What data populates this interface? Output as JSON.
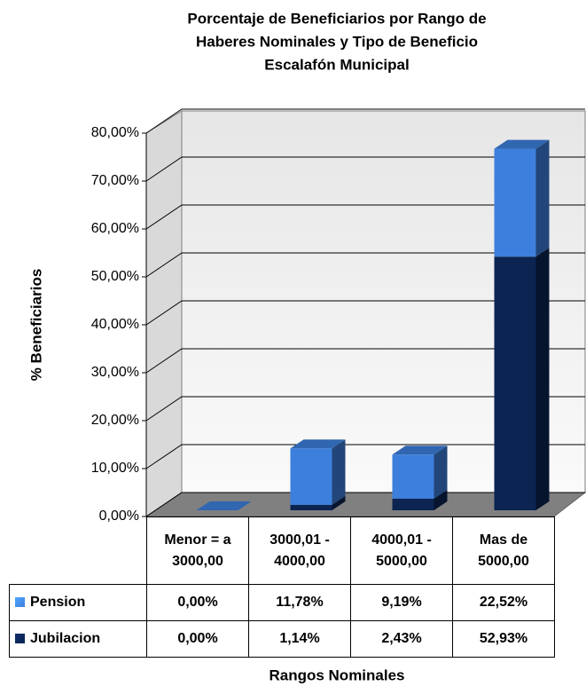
{
  "chart_data": {
    "type": "bar3d_stacked",
    "title": [
      "Porcentaje de Beneficiarios por Rango de",
      "Haberes Nominales y Tipo de Beneficio",
      "Escalafón Municipal"
    ],
    "y_label": "% Beneficiarios",
    "x_label": "Rangos Nominales",
    "categories": [
      "Menor = a 3000,00",
      "3000,01 - 4000,00",
      "4000,01 - 5000,00",
      "Mas de 5000,00"
    ],
    "series": [
      {
        "name": "Pension",
        "color": "#3d7fdc",
        "values": [
          0,
          11.78,
          9.19,
          22.52
        ],
        "value_labels": [
          "0,00%",
          "11,78%",
          "9,19%",
          "22,52%"
        ]
      },
      {
        "name": "Jubilacion",
        "color": "#0b2452",
        "values": [
          0,
          1.14,
          2.43,
          52.93
        ],
        "value_labels": [
          "0,00%",
          "1,14%",
          "2,43%",
          "52,93%"
        ]
      }
    ],
    "ylim": [
      0,
      80
    ],
    "yticks": [
      {
        "value": 0,
        "label": "0,00%"
      },
      {
        "value": 10,
        "label": "10,00%"
      },
      {
        "value": 20,
        "label": "20,00%"
      },
      {
        "value": 30,
        "label": "30,00%"
      },
      {
        "value": 40,
        "label": "40,00%"
      },
      {
        "value": 50,
        "label": "50,00%"
      },
      {
        "value": 60,
        "label": "60,00%"
      },
      {
        "value": 70,
        "label": "70,00%"
      },
      {
        "value": 80,
        "label": "80,00%"
      }
    ],
    "grid": true
  }
}
